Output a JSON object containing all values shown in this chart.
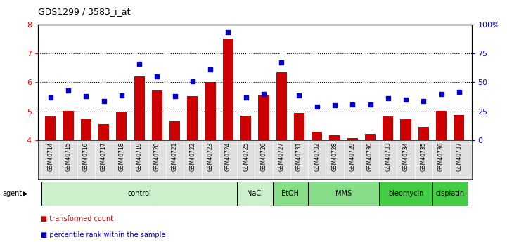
{
  "title": "GDS1299 / 3583_i_at",
  "samples": [
    "GSM40714",
    "GSM40715",
    "GSM40716",
    "GSM40717",
    "GSM40718",
    "GSM40719",
    "GSM40720",
    "GSM40721",
    "GSM40722",
    "GSM40723",
    "GSM40724",
    "GSM40725",
    "GSM40726",
    "GSM40727",
    "GSM40731",
    "GSM40732",
    "GSM40728",
    "GSM40729",
    "GSM40730",
    "GSM40733",
    "GSM40734",
    "GSM40735",
    "GSM40736",
    "GSM40737"
  ],
  "red_values": [
    4.83,
    5.02,
    4.73,
    4.55,
    4.97,
    6.2,
    5.72,
    4.65,
    5.52,
    6.0,
    7.5,
    4.85,
    5.55,
    6.35,
    4.95,
    4.3,
    4.18,
    4.08,
    4.22,
    4.82,
    4.72,
    4.45,
    5.02,
    4.87
  ],
  "blue_pct": [
    37,
    43,
    38,
    34,
    39,
    66,
    55,
    38,
    51,
    61,
    93,
    37,
    40,
    67,
    39,
    29,
    30,
    31,
    31,
    36,
    35,
    34,
    40,
    42
  ],
  "agents": [
    {
      "label": "control",
      "start": 0,
      "end": 11,
      "color": "#ccf0cc"
    },
    {
      "label": "NaCl",
      "start": 11,
      "end": 13,
      "color": "#ccf0cc"
    },
    {
      "label": "EtOH",
      "start": 13,
      "end": 15,
      "color": "#88dd88"
    },
    {
      "label": "MMS",
      "start": 15,
      "end": 19,
      "color": "#88dd88"
    },
    {
      "label": "bleomycin",
      "start": 19,
      "end": 22,
      "color": "#44cc44"
    },
    {
      "label": "cisplatin",
      "start": 22,
      "end": 24,
      "color": "#44cc44"
    }
  ],
  "ylim_left": [
    4.0,
    8.0
  ],
  "ylim_right": [
    0,
    100
  ],
  "yticks_left": [
    4,
    5,
    6,
    7,
    8
  ],
  "yticks_right": [
    0,
    25,
    50,
    75,
    100
  ],
  "ytick_labels_right": [
    "0",
    "25",
    "50",
    "75",
    "100%"
  ],
  "bar_color": "#cc0000",
  "dot_color": "#0000cc",
  "bar_width": 0.6,
  "background_color": "#ffffff"
}
